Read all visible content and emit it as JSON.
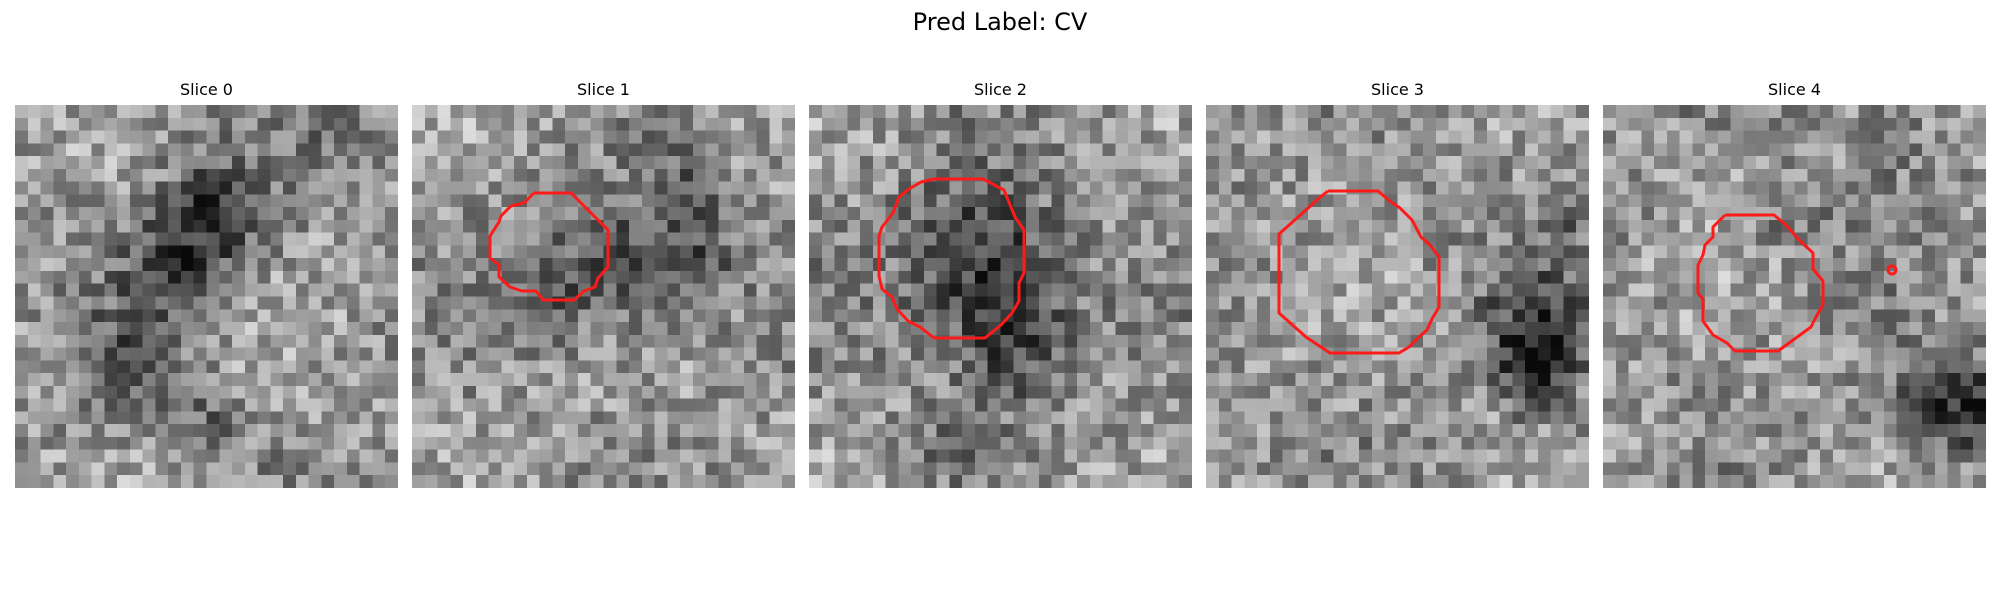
{
  "figure": {
    "title": "Pred Label: CV"
  },
  "colors": {
    "contour": "#ff1a1a",
    "background": "#ffffff"
  },
  "slices": [
    {
      "title": "Slice 0",
      "has_contour": false
    },
    {
      "title": "Slice 1",
      "has_contour": true
    },
    {
      "title": "Slice 2",
      "has_contour": true
    },
    {
      "title": "Slice 3",
      "has_contour": true
    },
    {
      "title": "Slice 4",
      "has_contour": true
    }
  ]
}
